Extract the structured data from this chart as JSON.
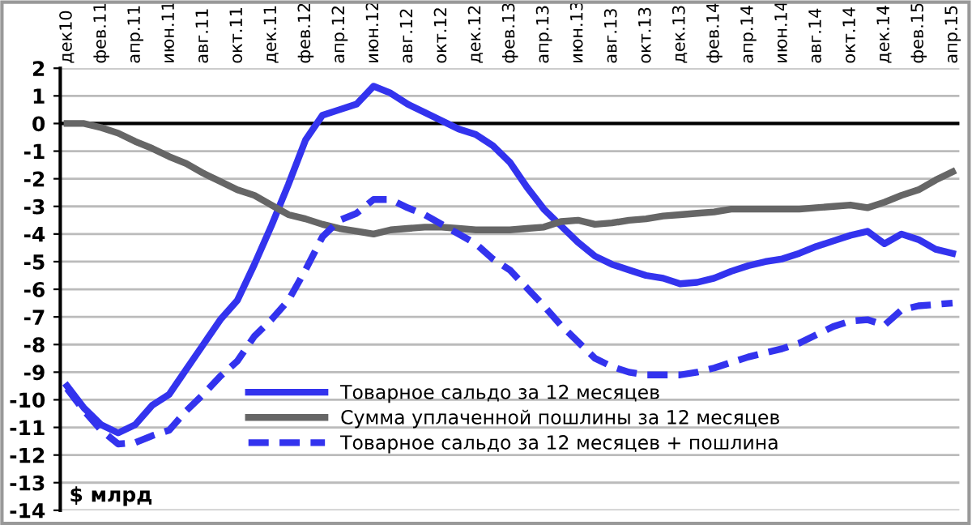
{
  "chart_data": {
    "type": "line",
    "categories": [
      "дек10",
      null,
      "фев.11",
      null,
      "апр.11",
      null,
      "июн.11",
      null,
      "авг.11",
      null,
      "окт.11",
      null,
      "дек.11",
      null,
      "фев.12",
      null,
      "апр.12",
      null,
      "июн.12",
      null,
      "авг.12",
      null,
      "окт.12",
      null,
      "дек.12",
      null,
      "фев.13",
      null,
      "апр.13",
      null,
      "июн.13",
      null,
      "авг.13",
      null,
      "окт.13",
      null,
      "дек.13",
      null,
      "фев.14",
      null,
      "апр.14",
      null,
      "июн.14",
      null,
      "авг.14",
      null,
      "окт.14",
      null,
      "дек.14",
      null,
      "фев.15",
      null,
      "апр.15"
    ],
    "series": [
      {
        "name": "Товарное сальдо за 12 месяцев",
        "color": "#3333ee",
        "line_style": "solid",
        "values": [
          -9.5,
          -10.3,
          -10.9,
          -11.2,
          -10.9,
          -10.2,
          -9.8,
          -8.9,
          -8.0,
          -7.1,
          -6.4,
          -5.1,
          -3.7,
          -2.2,
          -0.6,
          0.3,
          0.5,
          0.7,
          1.35,
          1.1,
          0.7,
          0.4,
          0.1,
          -0.2,
          -0.4,
          -0.8,
          -1.4,
          -2.3,
          -3.1,
          -3.7,
          -4.3,
          -4.8,
          -5.1,
          -5.3,
          -5.5,
          -5.6,
          -5.8,
          -5.75,
          -5.6,
          -5.35,
          -5.15,
          -5.0,
          -4.9,
          -4.7,
          -4.45,
          -4.25,
          -4.05,
          -3.9,
          -4.35,
          -4.0,
          -4.2,
          -4.55,
          -4.7
        ]
      },
      {
        "name": "Сумма уплаченной пошлины за 12 месяцев",
        "color": "#666666",
        "line_style": "solid",
        "values": [
          0,
          0,
          -0.15,
          -0.35,
          -0.65,
          -0.9,
          -1.2,
          -1.45,
          -1.8,
          -2.1,
          -2.4,
          -2.6,
          -2.95,
          -3.3,
          -3.45,
          -3.65,
          -3.8,
          -3.9,
          -4.0,
          -3.85,
          -3.8,
          -3.75,
          -3.75,
          -3.8,
          -3.85,
          -3.85,
          -3.85,
          -3.8,
          -3.75,
          -3.55,
          -3.5,
          -3.65,
          -3.6,
          -3.5,
          -3.45,
          -3.35,
          -3.3,
          -3.25,
          -3.2,
          -3.1,
          -3.1,
          -3.1,
          -3.1,
          -3.1,
          -3.05,
          -3.0,
          -2.95,
          -3.05,
          -2.85,
          -2.6,
          -2.4,
          -2.05,
          -1.75
        ]
      },
      {
        "name": "Товарное сальдо за 12 месяцев + пошлина",
        "color": "#3333ee",
        "line_style": "dashed",
        "values": [
          -9.6,
          -10.4,
          -11.1,
          -11.6,
          -11.55,
          -11.3,
          -11.1,
          -10.4,
          -9.8,
          -9.15,
          -8.6,
          -7.7,
          -7.1,
          -6.4,
          -5.3,
          -4.1,
          -3.5,
          -3.25,
          -2.75,
          -2.75,
          -3.05,
          -3.3,
          -3.65,
          -4.0,
          -4.35,
          -4.9,
          -5.3,
          -5.95,
          -6.6,
          -7.3,
          -7.9,
          -8.5,
          -8.8,
          -9.0,
          -9.1,
          -9.1,
          -9.1,
          -9.0,
          -8.85,
          -8.65,
          -8.45,
          -8.3,
          -8.15,
          -7.95,
          -7.65,
          -7.35,
          -7.15,
          -7.1,
          -7.3,
          -6.75,
          -6.6,
          -6.55,
          -6.5
        ]
      }
    ],
    "ylabel": "$ млрд",
    "ylim": [
      -14,
      2
    ],
    "yticks": [
      -14,
      -13,
      -12,
      -11,
      -10,
      -9,
      -8,
      -7,
      -6,
      -5,
      -4,
      -3,
      -2,
      -1,
      0,
      1,
      2
    ],
    "ref_lines": [
      {
        "axis": "y",
        "value": 0,
        "label": null,
        "color": "#000000"
      }
    ],
    "grid": "y",
    "legend": "bottom right"
  }
}
